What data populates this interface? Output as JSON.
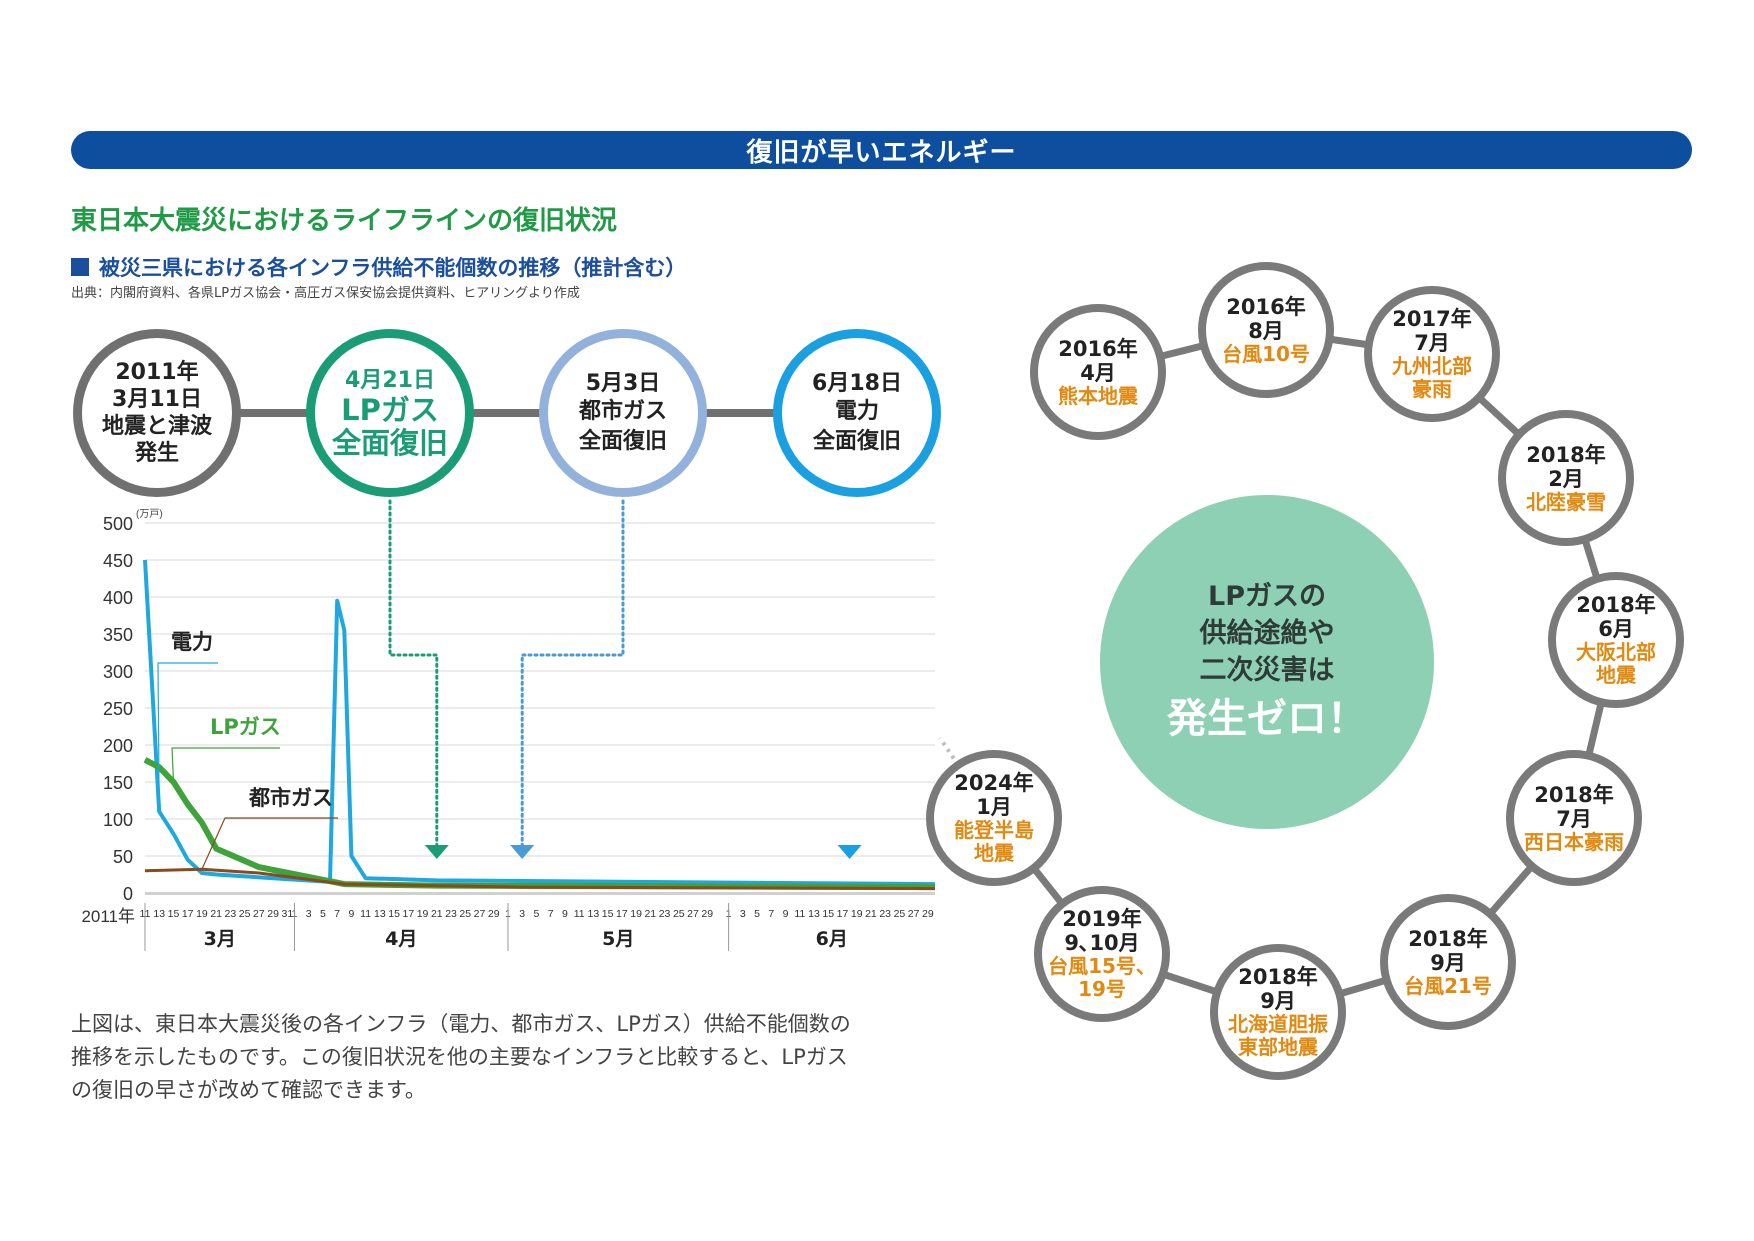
{
  "banner": {
    "title": "復旧が早いエネルギー"
  },
  "heading": "東日本大震災におけるライフラインの復旧状況",
  "subheading": "被災三県における各インフラ供給不能個数の推移（推計含む）",
  "source": "出典：内閣府資料、各県LPガス協会・高圧ガス保安協会提供資料、ヒアリングより作成",
  "timeline": [
    {
      "lines": [
        "2011年",
        "3月11日",
        "地震と津波",
        "発生"
      ]
    },
    {
      "lines": [
        "4月21日",
        "LPガス",
        "全面復旧"
      ]
    },
    {
      "lines": [
        "5月3日",
        "都市ガス",
        "全面復旧"
      ]
    },
    {
      "lines": [
        "6月18日",
        "電力",
        "全面復旧"
      ]
    }
  ],
  "chart_data": {
    "type": "line",
    "unit_label": "(万戸)",
    "ylim": [
      0,
      500
    ],
    "yticks": [
      0,
      50,
      100,
      150,
      200,
      250,
      300,
      350,
      400,
      450,
      500
    ],
    "xlim": [
      "2011-03-11",
      "2011-06-30"
    ],
    "year_label": "2011年",
    "x_tick_labels": [
      [
        "2011-03-11",
        "11"
      ],
      [
        "2011-03-13",
        "13"
      ],
      [
        "2011-03-15",
        "15"
      ],
      [
        "2011-03-17",
        "17"
      ],
      [
        "2011-03-19",
        "19"
      ],
      [
        "2011-03-21",
        "21"
      ],
      [
        "2011-03-23",
        "23"
      ],
      [
        "2011-03-25",
        "25"
      ],
      [
        "2011-03-27",
        "27"
      ],
      [
        "2011-03-29",
        "29"
      ],
      [
        "2011-03-31",
        "31"
      ],
      [
        "2011-04-01",
        "1"
      ],
      [
        "2011-04-03",
        "3"
      ],
      [
        "2011-04-05",
        "5"
      ],
      [
        "2011-04-07",
        "7"
      ],
      [
        "2011-04-09",
        "9"
      ],
      [
        "2011-04-11",
        "11"
      ],
      [
        "2011-04-13",
        "13"
      ],
      [
        "2011-04-15",
        "15"
      ],
      [
        "2011-04-17",
        "17"
      ],
      [
        "2011-04-19",
        "19"
      ],
      [
        "2011-04-21",
        "21"
      ],
      [
        "2011-04-23",
        "23"
      ],
      [
        "2011-04-25",
        "25"
      ],
      [
        "2011-04-27",
        "27"
      ],
      [
        "2011-04-29",
        "29"
      ],
      [
        "2011-05-01",
        "1"
      ],
      [
        "2011-05-03",
        "3"
      ],
      [
        "2011-05-05",
        "5"
      ],
      [
        "2011-05-07",
        "7"
      ],
      [
        "2011-05-09",
        "9"
      ],
      [
        "2011-05-11",
        "11"
      ],
      [
        "2011-05-13",
        "13"
      ],
      [
        "2011-05-15",
        "15"
      ],
      [
        "2011-05-17",
        "17"
      ],
      [
        "2011-05-19",
        "19"
      ],
      [
        "2011-05-21",
        "21"
      ],
      [
        "2011-05-23",
        "23"
      ],
      [
        "2011-05-25",
        "25"
      ],
      [
        "2011-05-27",
        "27"
      ],
      [
        "2011-05-29",
        "29"
      ],
      [
        "2011-06-01",
        "1"
      ],
      [
        "2011-06-03",
        "3"
      ],
      [
        "2011-06-05",
        "5"
      ],
      [
        "2011-06-07",
        "7"
      ],
      [
        "2011-06-09",
        "9"
      ],
      [
        "2011-06-11",
        "11"
      ],
      [
        "2011-06-13",
        "13"
      ],
      [
        "2011-06-15",
        "15"
      ],
      [
        "2011-06-17",
        "17"
      ],
      [
        "2011-06-19",
        "19"
      ],
      [
        "2011-06-21",
        "21"
      ],
      [
        "2011-06-23",
        "23"
      ],
      [
        "2011-06-25",
        "25"
      ],
      [
        "2011-06-27",
        "27"
      ],
      [
        "2011-06-29",
        "29"
      ]
    ],
    "months": [
      {
        "label": "3月",
        "start": "2011-03-11",
        "end": "2011-04-01"
      },
      {
        "label": "4月",
        "start": "2011-04-01",
        "end": "2011-05-01"
      },
      {
        "label": "5月",
        "start": "2011-05-01",
        "end": "2011-06-01"
      },
      {
        "label": "6月",
        "start": "2011-06-01",
        "end": "2011-06-30"
      }
    ],
    "series": [
      {
        "name": "電力",
        "color": "#1ea8df",
        "points": [
          [
            "2011-03-11",
            450
          ],
          [
            "2011-03-13",
            110
          ],
          [
            "2011-03-15",
            80
          ],
          [
            "2011-03-17",
            45
          ],
          [
            "2011-03-19",
            27
          ],
          [
            "2011-03-21",
            25
          ],
          [
            "2011-04-06",
            15
          ],
          [
            "2011-04-07",
            395
          ],
          [
            "2011-04-08",
            355
          ],
          [
            "2011-04-09",
            50
          ],
          [
            "2011-04-11",
            20
          ],
          [
            "2011-04-21",
            17
          ],
          [
            "2011-06-30",
            12
          ]
        ]
      },
      {
        "name": "LPガス",
        "color": "#3ea33a",
        "points": [
          [
            "2011-03-11",
            180
          ],
          [
            "2011-03-13",
            170
          ],
          [
            "2011-03-15",
            150
          ],
          [
            "2011-03-17",
            120
          ],
          [
            "2011-03-19",
            95
          ],
          [
            "2011-03-21",
            60
          ],
          [
            "2011-03-27",
            35
          ],
          [
            "2011-04-08",
            12
          ],
          [
            "2011-04-21",
            10
          ],
          [
            "2011-06-30",
            8
          ]
        ]
      },
      {
        "name": "都市ガス",
        "color": "#8a4a1e",
        "points": [
          [
            "2011-03-11",
            30
          ],
          [
            "2011-03-19",
            32
          ],
          [
            "2011-03-27",
            27
          ],
          [
            "2011-04-08",
            12
          ],
          [
            "2011-05-03",
            8
          ],
          [
            "2011-06-30",
            6
          ]
        ]
      }
    ],
    "recovery_arrows": [
      {
        "date": "2011-04-21",
        "color": "#1a9d77",
        "node": 1
      },
      {
        "date": "2011-05-03",
        "color": "#4a9ad4",
        "node": 2
      },
      {
        "date": "2011-06-18",
        "color": "#1a9fe0",
        "node": 3
      }
    ]
  },
  "disasters": [
    {
      "year": "2016年",
      "month": "4月",
      "event": [
        "熊本地震"
      ]
    },
    {
      "year": "2016年",
      "month": "8月",
      "event": [
        "台風10号"
      ]
    },
    {
      "year": "2017年",
      "month": "7月",
      "event": [
        "九州北部",
        "豪雨"
      ]
    },
    {
      "year": "2018年",
      "month": "2月",
      "event": [
        "北陸豪雪"
      ]
    },
    {
      "year": "2018年",
      "month": "6月",
      "event": [
        "大阪北部",
        "地震"
      ]
    },
    {
      "year": "2018年",
      "month": "7月",
      "event": [
        "西日本豪雨"
      ]
    },
    {
      "year": "2018年",
      "month": "9月",
      "event": [
        "台風21号"
      ]
    },
    {
      "year": "2018年",
      "month": "9月",
      "event": [
        "北海道胆振",
        "東部地震"
      ]
    },
    {
      "year": "2019年",
      "month": "9､10月",
      "event": [
        "台風15号、",
        "19号"
      ]
    },
    {
      "year": "2024年",
      "month": "1月",
      "event": [
        "能登半島",
        "地震"
      ]
    }
  ],
  "center": {
    "lines": [
      "LPガスの",
      "供給途絶や",
      "二次災害は"
    ],
    "emphasis": "発生ゼロ！"
  },
  "description": [
    "上図は、東日本大震災後の各インフラ（電力、都市ガス、LPガス）供給不能個数の",
    "推移を示したものです。この復旧状況を他の主要なインフラと比較すると、LPガス",
    "の復旧の早さが改めて確認できます。"
  ]
}
